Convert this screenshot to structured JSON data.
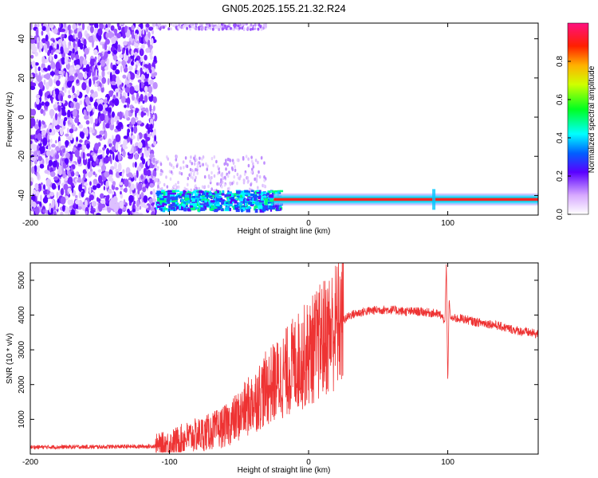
{
  "chart_data": [
    {
      "type": "heatmap",
      "title": "GN05.2025.155.21.32.R24",
      "xlabel": "Height of straight line (km)",
      "ylabel": "Frequency (Hz)",
      "xlim": [
        -200,
        165
      ],
      "ylim": [
        -50,
        48
      ],
      "xticks": [
        -200,
        -100,
        0,
        100
      ],
      "yticks": [
        -40,
        -20,
        0,
        20,
        40
      ],
      "colorbar": {
        "label": "Normalized spectral amplitude",
        "range": [
          0,
          1
        ],
        "ticks": [
          "0.0",
          "0.2",
          "0.4",
          "0.6",
          "0.8"
        ]
      },
      "features": {
        "noise_region_x": [
          -200,
          -110
        ],
        "tone_frequency_hz": -42,
        "tone_start_x": -110,
        "tone_end_x": 165,
        "tone_spike_x": 90
      }
    },
    {
      "type": "line",
      "xlabel": "Height of straight line (km)",
      "ylabel": "SNR (10 * v/v)",
      "xlim": [
        -200,
        165
      ],
      "ylim": [
        0,
        5500
      ],
      "xticks": [
        -200,
        -100,
        0,
        100
      ],
      "yticks": [
        1000,
        2000,
        3000,
        4000,
        5000
      ],
      "color": "#ee3333",
      "series": [
        {
          "x": [
            -200,
            -150,
            -120,
            -110,
            -100,
            -90,
            -80,
            -70,
            -60,
            -50,
            -40,
            -30,
            -20,
            -10,
            0,
            10,
            20,
            30,
            40,
            50,
            60,
            70,
            80,
            90,
            95,
            98,
            99,
            100,
            101,
            102,
            105,
            110,
            120,
            130,
            140,
            150,
            165
          ],
          "values": [
            200,
            210,
            220,
            230,
            300,
            450,
            550,
            650,
            800,
            1100,
            1500,
            1900,
            2200,
            2600,
            2900,
            3300,
            3700,
            4000,
            4100,
            4150,
            4150,
            4100,
            4100,
            4050,
            4000,
            3800,
            5500,
            2000,
            4500,
            3900,
            3900,
            3900,
            3800,
            3750,
            3650,
            3550,
            3450
          ]
        }
      ]
    }
  ]
}
